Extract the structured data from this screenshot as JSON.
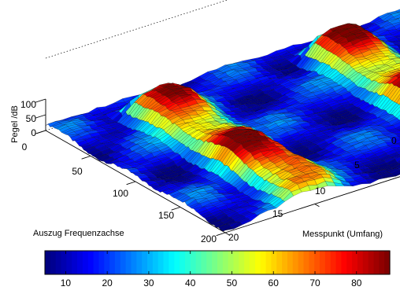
{
  "chart_data": {
    "type": "surface",
    "title": "",
    "zlabel": "Pegel /dB",
    "xlabel": "Auszug Frequenzachse",
    "ylabel": "Messpunkt (Umfang)",
    "x_axis": {
      "range": [
        0,
        200
      ],
      "ticks": [
        "0",
        "50",
        "100",
        "150",
        "200"
      ]
    },
    "y_axis": {
      "range": [
        0,
        20
      ],
      "ticks": [
        "0",
        "5",
        "10",
        "15",
        "20"
      ]
    },
    "z_axis": {
      "range": [
        0,
        100
      ],
      "ticks": [
        "0",
        "50",
        "100"
      ]
    },
    "colorbar": {
      "colormap": "jet",
      "range": [
        5,
        88
      ],
      "ticks": [
        "10",
        "20",
        "30",
        "40",
        "50",
        "60",
        "70",
        "80"
      ]
    },
    "grid": true,
    "features": [
      {
        "y_center": 5,
        "level_db": 85
      },
      {
        "y_center": 15,
        "level_db": 85
      }
    ],
    "background_level_db": 15
  }
}
